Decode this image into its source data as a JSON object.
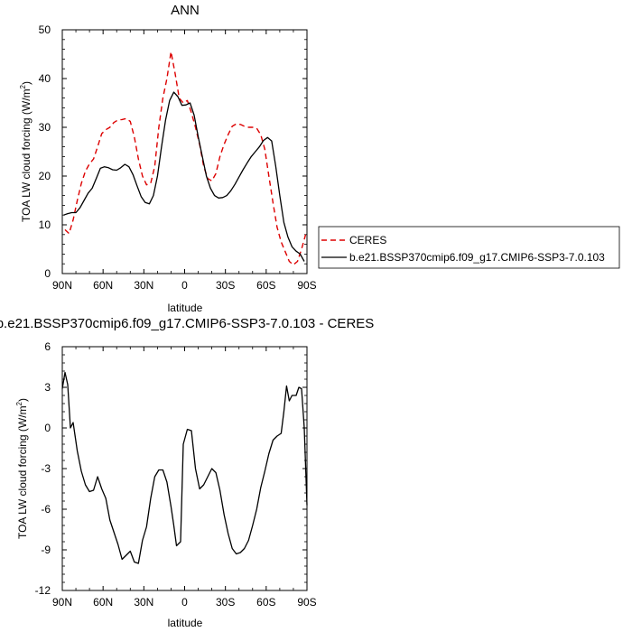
{
  "chart_data": [
    {
      "type": "line",
      "title": "ANN",
      "xlabel": "latitude",
      "ylabel": "TOA LW cloud forcing (W/m",
      "ylabel_sup": "2",
      "ylabel_end": ")",
      "xlim": [
        90,
        -90
      ],
      "ylim": [
        0,
        50
      ],
      "x_ticks": [
        90,
        60,
        30,
        0,
        -30,
        -60,
        -90
      ],
      "x_tick_labels": [
        "90N",
        "60N",
        "30N",
        "0",
        "30S",
        "60S",
        "90S"
      ],
      "y_ticks": [
        0,
        10,
        20,
        30,
        40,
        50
      ],
      "y_tick_labels": [
        "0",
        "10",
        "20",
        "30",
        "40",
        "50"
      ],
      "legend_position": "right",
      "series": [
        {
          "name": "CERES",
          "color": "#dd0000",
          "style": "dashed",
          "x": [
            88,
            85,
            82,
            79,
            76,
            73,
            70,
            67,
            64,
            61,
            58,
            55,
            52,
            49,
            46,
            43,
            40,
            37,
            34,
            31,
            28,
            25,
            22,
            19,
            16,
            13,
            10,
            7,
            4,
            1,
            -2,
            -5,
            -8,
            -11,
            -14,
            -17,
            -20,
            -23,
            -26,
            -29,
            -32,
            -35,
            -38,
            -41,
            -44,
            -47,
            -50,
            -53,
            -56,
            -59,
            -62,
            -65,
            -68,
            -71,
            -74,
            -77,
            -80,
            -83,
            -86,
            -89
          ],
          "y": [
            9,
            8.2,
            11,
            15,
            18.5,
            21,
            22.5,
            23.5,
            26,
            28.7,
            29.5,
            30,
            31,
            31.5,
            31.6,
            31.8,
            31.2,
            28,
            23.5,
            20,
            18.2,
            18.5,
            22,
            30,
            36,
            40,
            45.5,
            41,
            36,
            35,
            35.5,
            33,
            30,
            26.5,
            22,
            19.5,
            19,
            20.5,
            24,
            26.5,
            28.5,
            30.2,
            30.7,
            30.6,
            30.2,
            30,
            30,
            29.8,
            28.5,
            25.5,
            20,
            14.5,
            9.5,
            6.5,
            4.5,
            2.5,
            1.8,
            2.5,
            5,
            8
          ]
        },
        {
          "name": "b.e21.BSSP370cmip6.f09_g17.CMIP6-SSP3-7.0.103",
          "color": "#000000",
          "style": "solid",
          "x": [
            89,
            86,
            83,
            80,
            77,
            74,
            71,
            68,
            65,
            62,
            59,
            56,
            53,
            50,
            47,
            44,
            41,
            38,
            35,
            32,
            29,
            26,
            23,
            20,
            17,
            14,
            11,
            8,
            5,
            2,
            -1,
            -4,
            -7,
            -10,
            -13,
            -16,
            -19,
            -22,
            -25,
            -28,
            -31,
            -34,
            -37,
            -40,
            -43,
            -46,
            -49,
            -52,
            -55,
            -58,
            -61,
            -64,
            -67,
            -70,
            -73,
            -76,
            -79,
            -82,
            -85,
            -88
          ],
          "y": [
            12,
            12.3,
            12.5,
            12.5,
            13.5,
            15,
            16.5,
            17.5,
            19.5,
            21.6,
            21.9,
            21.7,
            21.3,
            21.2,
            21.7,
            22.4,
            21.9,
            20.3,
            18,
            15.8,
            14.6,
            14.3,
            16,
            20,
            26,
            31.5,
            35.5,
            37.2,
            36.3,
            34.5,
            34.6,
            35,
            32.5,
            28,
            24,
            20,
            17.5,
            16,
            15.5,
            15.6,
            16,
            17,
            18.3,
            19.8,
            21.3,
            22.7,
            24,
            25,
            26,
            27.3,
            27.9,
            27.2,
            22,
            16,
            10.5,
            7.5,
            5.5,
            4.6,
            4,
            2.5
          ]
        }
      ]
    },
    {
      "type": "line",
      "title": "b.e21.BSSP370cmip6.f09_g17.CMIP6-SSP3-7.0.103 - CERES",
      "xlabel": "latitude",
      "ylabel": "TOA LW cloud forcing (W/m",
      "ylabel_sup": "2",
      "ylabel_end": ")",
      "xlim": [
        90,
        -90
      ],
      "ylim": [
        -12,
        6
      ],
      "x_ticks": [
        90,
        60,
        30,
        0,
        -30,
        -60,
        -90
      ],
      "x_tick_labels": [
        "90N",
        "60N",
        "30N",
        "0",
        "30S",
        "60S",
        "90S"
      ],
      "y_ticks": [
        -12,
        -9,
        -6,
        -3,
        0,
        3,
        6
      ],
      "y_tick_labels": [
        "-12",
        "-9",
        "-6",
        "-3",
        "0",
        "3",
        "6"
      ],
      "series": [
        {
          "color": "#000000",
          "style": "solid",
          "x": [
            90,
            88,
            86,
            84,
            82,
            79,
            76,
            73,
            70,
            67,
            64,
            61,
            58,
            55,
            52,
            49,
            46,
            43,
            40,
            37,
            34,
            31,
            28,
            25,
            22,
            19,
            16,
            13,
            10,
            8,
            6,
            3,
            1,
            -2,
            -5,
            -8,
            -11,
            -14,
            -17,
            -20,
            -23,
            -26,
            -29,
            -32,
            -35,
            -38,
            -41,
            -44,
            -47,
            -50,
            -53,
            -56,
            -59,
            -62,
            -65,
            -68,
            -71,
            -73,
            -75,
            -77,
            -79,
            -82,
            -84,
            -86,
            -88,
            -90
          ],
          "y": [
            2.9,
            4.1,
            3.2,
            0,
            0.4,
            -1.7,
            -3.2,
            -4.2,
            -4.7,
            -4.6,
            -3.6,
            -4.5,
            -5.2,
            -6.8,
            -7.7,
            -8.6,
            -9.7,
            -9.4,
            -9.1,
            -9.9,
            -10,
            -8.3,
            -7.3,
            -5.2,
            -3.6,
            -3.1,
            -3.1,
            -4,
            -5.8,
            -7.2,
            -8.7,
            -8.4,
            -1.2,
            -0.1,
            -0.2,
            -3,
            -4.5,
            -4.2,
            -3.6,
            -3,
            -3.3,
            -4.6,
            -6.4,
            -7.8,
            -8.9,
            -9.3,
            -9.2,
            -8.9,
            -8.3,
            -7.2,
            -6,
            -4.4,
            -3.2,
            -1.9,
            -0.9,
            -0.6,
            -0.4,
            1.2,
            3.1,
            2,
            2.4,
            2.4,
            3,
            2.9,
            0,
            -5.7
          ]
        }
      ]
    }
  ]
}
